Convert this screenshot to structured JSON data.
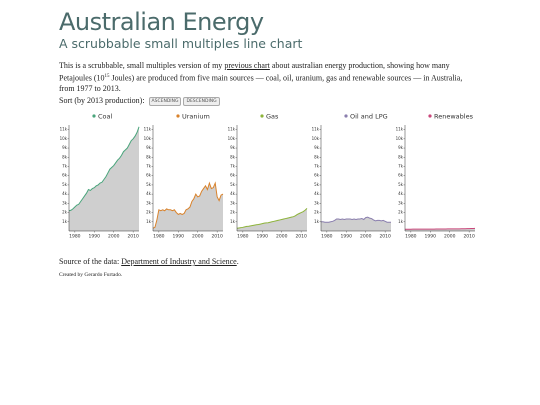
{
  "header": {
    "title": "Australian Energy",
    "subtitle": "A scrubbable small multiples line chart"
  },
  "intro": [
    "This is a scrubbable, small multiples version of my ",
    "previous chart",
    " about australian energy production, showing how many Petajoules (10",
    "15",
    " Joules) are produced from five main sources — coal, oil, uranium, gas and renewable sources — in Australia, from 1977 to 2013."
  ],
  "sort": {
    "label": "Sort (by 2013 production):",
    "buttons": [
      "ASCENDING",
      "DESCENDING"
    ]
  },
  "source": [
    "Source of the data: ",
    "Department of Industry and Science",
    "."
  ],
  "credit": "Created by Gerardo Furtado.",
  "chart_data": [
    {
      "type": "line",
      "x": [
        1977,
        1978,
        1979,
        1980,
        1981,
        1982,
        1983,
        1984,
        1985,
        1986,
        1987,
        1988,
        1989,
        1990,
        1991,
        1992,
        1993,
        1994,
        1995,
        1996,
        1997,
        1998,
        1999,
        2000,
        2001,
        2002,
        2003,
        2004,
        2005,
        2006,
        2007,
        2008,
        2009,
        2010,
        2011,
        2012,
        2013
      ],
      "xlim": [
        1977,
        2013
      ],
      "xticks": [
        1980,
        1990,
        2000,
        2010
      ],
      "ylim": [
        0,
        11500
      ],
      "yticks": [
        {
          "value": 1000,
          "label": "1k"
        },
        {
          "value": 2000,
          "label": "2k"
        },
        {
          "value": 3000,
          "label": "3k"
        },
        {
          "value": 4000,
          "label": "4k"
        },
        {
          "value": 5000,
          "label": "5k"
        },
        {
          "value": 6000,
          "label": "6k"
        },
        {
          "value": 7000,
          "label": "7k"
        },
        {
          "value": 8000,
          "label": "8k"
        },
        {
          "value": 9000,
          "label": "9k"
        },
        {
          "value": 10000,
          "label": "10k"
        },
        {
          "value": 11000,
          "label": "11k"
        }
      ],
      "series": [
        {
          "name": "Coal",
          "color": "#4aa57c",
          "values": [
            2200,
            2250,
            2400,
            2600,
            2800,
            2900,
            3200,
            3500,
            3800,
            4100,
            4500,
            4400,
            4600,
            4700,
            4900,
            5000,
            5200,
            5300,
            5600,
            5900,
            6300,
            6700,
            6900,
            7100,
            7400,
            7700,
            7900,
            8200,
            8600,
            8800,
            9000,
            9400,
            9800,
            10000,
            10300,
            10700,
            11300
          ]
        }
      ]
    },
    {
      "type": "line",
      "x": [
        1977,
        1978,
        1979,
        1980,
        1981,
        1982,
        1983,
        1984,
        1985,
        1986,
        1987,
        1988,
        1989,
        1990,
        1991,
        1992,
        1993,
        1994,
        1995,
        1996,
        1997,
        1998,
        1999,
        2000,
        2001,
        2002,
        2003,
        2004,
        2005,
        2006,
        2007,
        2008,
        2009,
        2010,
        2011,
        2012,
        2013
      ],
      "xlim": [
        1977,
        2013
      ],
      "xticks": [
        1980,
        1990,
        2000,
        2010
      ],
      "ylim": [
        0,
        11500
      ],
      "yticks": [
        {
          "value": 1000,
          "label": "1k"
        },
        {
          "value": 2000,
          "label": "2k"
        },
        {
          "value": 3000,
          "label": "3k"
        },
        {
          "value": 4000,
          "label": "4k"
        },
        {
          "value": 5000,
          "label": "5k"
        },
        {
          "value": 6000,
          "label": "6k"
        },
        {
          "value": 7000,
          "label": "7k"
        },
        {
          "value": 8000,
          "label": "8k"
        },
        {
          "value": 9000,
          "label": "9k"
        },
        {
          "value": 10000,
          "label": "10k"
        },
        {
          "value": 11000,
          "label": "11k"
        }
      ],
      "series": [
        {
          "name": "Uranium",
          "color": "#d9822b",
          "values": [
            300,
            400,
            1200,
            2300,
            2200,
            2300,
            2200,
            2400,
            2300,
            2300,
            2200,
            2300,
            2000,
            1800,
            1900,
            1800,
            1900,
            2300,
            2400,
            2600,
            3200,
            3500,
            4000,
            3700,
            3800,
            4300,
            4600,
            4900,
            4500,
            5200,
            4600,
            4700,
            5200,
            3700,
            3300,
            3900,
            4000
          ]
        }
      ]
    },
    {
      "type": "line",
      "x": [
        1977,
        1978,
        1979,
        1980,
        1981,
        1982,
        1983,
        1984,
        1985,
        1986,
        1987,
        1988,
        1989,
        1990,
        1991,
        1992,
        1993,
        1994,
        1995,
        1996,
        1997,
        1998,
        1999,
        2000,
        2001,
        2002,
        2003,
        2004,
        2005,
        2006,
        2007,
        2008,
        2009,
        2010,
        2011,
        2012,
        2013
      ],
      "xlim": [
        1977,
        2013
      ],
      "xticks": [
        1980,
        1990,
        2000,
        2010
      ],
      "ylim": [
        0,
        11500
      ],
      "yticks": [
        {
          "value": 1000,
          "label": "1k"
        },
        {
          "value": 2000,
          "label": "2k"
        },
        {
          "value": 3000,
          "label": "3k"
        },
        {
          "value": 4000,
          "label": "4k"
        },
        {
          "value": 5000,
          "label": "5k"
        },
        {
          "value": 6000,
          "label": "6k"
        },
        {
          "value": 7000,
          "label": "7k"
        },
        {
          "value": 8000,
          "label": "8k"
        },
        {
          "value": 9000,
          "label": "9k"
        },
        {
          "value": 10000,
          "label": "10k"
        },
        {
          "value": 11000,
          "label": "11k"
        }
      ],
      "series": [
        {
          "name": "Gas",
          "color": "#8db33a",
          "values": [
            300,
            330,
            360,
            400,
            450,
            500,
            520,
            560,
            600,
            640,
            680,
            700,
            750,
            800,
            850,
            880,
            900,
            950,
            1000,
            1050,
            1100,
            1150,
            1200,
            1250,
            1300,
            1350,
            1400,
            1450,
            1500,
            1550,
            1650,
            1800,
            1900,
            2000,
            2100,
            2250,
            2450
          ]
        }
      ]
    },
    {
      "type": "line",
      "x": [
        1977,
        1978,
        1979,
        1980,
        1981,
        1982,
        1983,
        1984,
        1985,
        1986,
        1987,
        1988,
        1989,
        1990,
        1991,
        1992,
        1993,
        1994,
        1995,
        1996,
        1997,
        1998,
        1999,
        2000,
        2001,
        2002,
        2003,
        2004,
        2005,
        2006,
        2007,
        2008,
        2009,
        2010,
        2011,
        2012,
        2013
      ],
      "xlim": [
        1977,
        2013
      ],
      "xticks": [
        1980,
        1990,
        2000,
        2010
      ],
      "ylim": [
        0,
        11500
      ],
      "yticks": [
        {
          "value": 1000,
          "label": "1k"
        },
        {
          "value": 2000,
          "label": "2k"
        },
        {
          "value": 3000,
          "label": "3k"
        },
        {
          "value": 4000,
          "label": "4k"
        },
        {
          "value": 5000,
          "label": "5k"
        },
        {
          "value": 6000,
          "label": "6k"
        },
        {
          "value": 7000,
          "label": "7k"
        },
        {
          "value": 8000,
          "label": "8k"
        },
        {
          "value": 9000,
          "label": "9k"
        },
        {
          "value": 10000,
          "label": "10k"
        },
        {
          "value": 11000,
          "label": "11k"
        }
      ],
      "series": [
        {
          "name": "Oil and LPG",
          "color": "#8a7eae",
          "values": [
            1000,
            1000,
            950,
            950,
            950,
            1000,
            1050,
            1150,
            1300,
            1300,
            1250,
            1300,
            1250,
            1300,
            1300,
            1300,
            1250,
            1300,
            1250,
            1300,
            1300,
            1350,
            1250,
            1450,
            1500,
            1400,
            1350,
            1200,
            1100,
            1150,
            1150,
            1100,
            1150,
            1050,
            950,
            950,
            950
          ]
        }
      ]
    },
    {
      "type": "line",
      "x": [
        1977,
        1978,
        1979,
        1980,
        1981,
        1982,
        1983,
        1984,
        1985,
        1986,
        1987,
        1988,
        1989,
        1990,
        1991,
        1992,
        1993,
        1994,
        1995,
        1996,
        1997,
        1998,
        1999,
        2000,
        2001,
        2002,
        2003,
        2004,
        2005,
        2006,
        2007,
        2008,
        2009,
        2010,
        2011,
        2012,
        2013
      ],
      "xlim": [
        1977,
        2013
      ],
      "xticks": [
        1980,
        1990,
        2000,
        2010
      ],
      "ylim": [
        0,
        11500
      ],
      "yticks": [
        {
          "value": 1000,
          "label": "1k"
        },
        {
          "value": 2000,
          "label": "2k"
        },
        {
          "value": 3000,
          "label": "3k"
        },
        {
          "value": 4000,
          "label": "4k"
        },
        {
          "value": 5000,
          "label": "5k"
        },
        {
          "value": 6000,
          "label": "6k"
        },
        {
          "value": 7000,
          "label": "7k"
        },
        {
          "value": 8000,
          "label": "8k"
        },
        {
          "value": 9000,
          "label": "9k"
        },
        {
          "value": 10000,
          "label": "10k"
        },
        {
          "value": 11000,
          "label": "11k"
        }
      ],
      "series": [
        {
          "name": "Renewables",
          "color": "#c9467a",
          "values": [
            190,
            190,
            195,
            195,
            200,
            200,
            200,
            200,
            200,
            205,
            205,
            205,
            210,
            210,
            210,
            210,
            215,
            215,
            215,
            220,
            220,
            220,
            225,
            225,
            230,
            230,
            230,
            235,
            235,
            240,
            245,
            250,
            255,
            260,
            265,
            270,
            280
          ]
        }
      ]
    }
  ]
}
